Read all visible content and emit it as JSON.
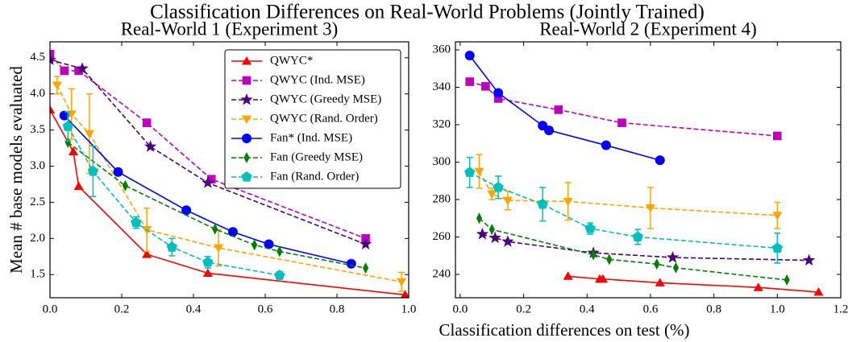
{
  "title": "Classification Differences on Real-World Problems (Jointly Trained)",
  "xlabel": "Classification differences on test (%)",
  "ylabel": "Mean # base models evaluated",
  "chart_data": [
    {
      "type": "line",
      "title": "Real-World 1 (Experiment 3)",
      "legend": "upper right",
      "xlim": [
        0,
        1
      ],
      "xticks": [
        {
          "value": 0,
          "label": "0.0"
        },
        0.2,
        0.4,
        0.6,
        0.8,
        {
          "value": 1,
          "label": "1.0"
        }
      ],
      "ylim": [
        1.18,
        4.72
      ],
      "yticks": [
        1.5,
        {
          "value": 2,
          "label": "2.0"
        },
        2.5,
        {
          "value": 3,
          "label": "3.0"
        },
        3.5,
        {
          "value": 4,
          "label": "4.0"
        },
        4.5
      ],
      "series": [
        {
          "name": "QWYC*",
          "color": "#ff0000",
          "marker": "triangle-up",
          "linestyle": "solid",
          "x": [
            0,
            0.065,
            0.08,
            0.27,
            0.44,
            0.99
          ],
          "values": [
            3.78,
            3.2,
            2.72,
            1.78,
            1.52,
            1.22
          ]
        },
        {
          "name": "QWYC (Ind. MSE)",
          "color": "#bf00bf",
          "marker": "square",
          "linestyle": "dashed",
          "x": [
            0,
            0.04,
            0.08,
            0.27,
            0.45,
            0.88
          ],
          "values": [
            4.55,
            4.32,
            4.32,
            3.6,
            2.82,
            2.0
          ]
        },
        {
          "name": "QWYC (Greedy MSE)",
          "color": "#4b0082",
          "marker": "star",
          "linestyle": "dashed",
          "x": [
            0,
            0.09,
            0.28,
            0.44,
            0.88
          ],
          "values": [
            4.47,
            4.35,
            3.27,
            2.77,
            1.92
          ]
        },
        {
          "name": "QWYC (Rand. Order)",
          "color": "#ffa500",
          "marker": "triangle-down",
          "linestyle": "dashed",
          "x": [
            0.02,
            0.06,
            0.11,
            0.27,
            0.47,
            0.98
          ],
          "values": [
            4.12,
            3.72,
            3.45,
            2.12,
            1.87,
            1.4
          ],
          "errors": [
            0.12,
            0.35,
            0.55,
            0.3,
            0.25,
            0.13
          ]
        },
        {
          "name": "Fan* (Ind. MSE)",
          "color": "#0000ff",
          "marker": "circle",
          "linestyle": "solid",
          "x": [
            0.04,
            0.19,
            0.38,
            0.51,
            0.61,
            0.84
          ],
          "values": [
            3.7,
            2.92,
            2.39,
            2.09,
            1.92,
            1.65
          ]
        },
        {
          "name": "Fan (Greedy MSE)",
          "color": "#008000",
          "marker": "diamond",
          "linestyle": "dashed",
          "x": [
            0.05,
            0.21,
            0.46,
            0.57,
            0.64,
            0.88
          ],
          "values": [
            3.33,
            2.73,
            2.13,
            1.91,
            1.82,
            1.59
          ]
        },
        {
          "name": "Fan (Rand. Order)",
          "color": "#00bfbf",
          "marker": "pentagon",
          "linestyle": "dashed",
          "x": [
            0.05,
            0.12,
            0.24,
            0.34,
            0.44,
            0.64
          ],
          "values": [
            3.55,
            2.93,
            2.22,
            1.88,
            1.67,
            1.49
          ],
          "errors": [
            0.2,
            0.35,
            0.08,
            0.12,
            0.08,
            0.05
          ]
        }
      ]
    },
    {
      "type": "line",
      "title": "Real-World 2 (Experiment 4)",
      "xlim": [
        -0.015,
        1.2
      ],
      "xticks": [
        {
          "value": 0,
          "label": "0.0"
        },
        0.2,
        0.4,
        0.6,
        0.8,
        {
          "value": 1,
          "label": "1.0"
        },
        1.2
      ],
      "ylim": [
        227.5,
        364.3
      ],
      "yticks": [
        240,
        260,
        280,
        300,
        320,
        340,
        360
      ],
      "series": [
        {
          "name": "QWYC*",
          "color": "#ff0000",
          "marker": "triangle-up",
          "linestyle": "solid",
          "x": [
            0.34,
            0.44,
            0.45,
            0.63,
            0.94,
            1.13
          ],
          "values": [
            239,
            237.5,
            237.5,
            235.5,
            233,
            230.5
          ]
        },
        {
          "name": "QWYC (Ind. MSE)",
          "color": "#bf00bf",
          "marker": "square",
          "linestyle": "dashed",
          "x": [
            0.03,
            0.08,
            0.12,
            0.31,
            0.51,
            1.0
          ],
          "values": [
            343,
            340.5,
            334,
            328,
            321,
            314
          ]
        },
        {
          "name": "QWYC (Greedy MSE)",
          "color": "#4b0082",
          "marker": "star",
          "linestyle": "dashed",
          "x": [
            0.07,
            0.11,
            0.15,
            0.42,
            0.67,
            1.1
          ],
          "values": [
            261.5,
            259.5,
            257.5,
            251.5,
            249,
            247.5
          ]
        },
        {
          "name": "QWYC (Rand. Order)",
          "color": "#ffa500",
          "marker": "triangle-down",
          "linestyle": "dashed",
          "x": [
            0.06,
            0.1,
            0.15,
            0.34,
            0.6,
            1.0
          ],
          "values": [
            295,
            283,
            279.5,
            279,
            275.5,
            271.5
          ],
          "errors": [
            9,
            3,
            5,
            10,
            11,
            7
          ]
        },
        {
          "name": "Fan* (Ind. MSE)",
          "color": "#0000ff",
          "marker": "circle",
          "linestyle": "solid",
          "x": [
            0.03,
            0.12,
            0.26,
            0.28,
            0.46,
            0.63
          ],
          "values": [
            357,
            337,
            319.5,
            317,
            309,
            301
          ]
        },
        {
          "name": "Fan (Greedy MSE)",
          "color": "#008000",
          "marker": "diamond",
          "linestyle": "dashed",
          "x": [
            0.06,
            0.1,
            0.42,
            0.47,
            0.62,
            0.68,
            1.03
          ],
          "values": [
            270,
            264,
            250.5,
            248,
            245.5,
            243.5,
            237
          ]
        },
        {
          "name": "Fan (Rand. Order)",
          "color": "#00bfbf",
          "marker": "pentagon",
          "linestyle": "dashed",
          "x": [
            0.03,
            0.12,
            0.26,
            0.41,
            0.56,
            1.0
          ],
          "values": [
            294.5,
            286.5,
            277.5,
            264.5,
            260,
            254
          ],
          "errors": [
            8,
            6,
            9,
            3,
            4,
            8
          ]
        }
      ]
    }
  ]
}
